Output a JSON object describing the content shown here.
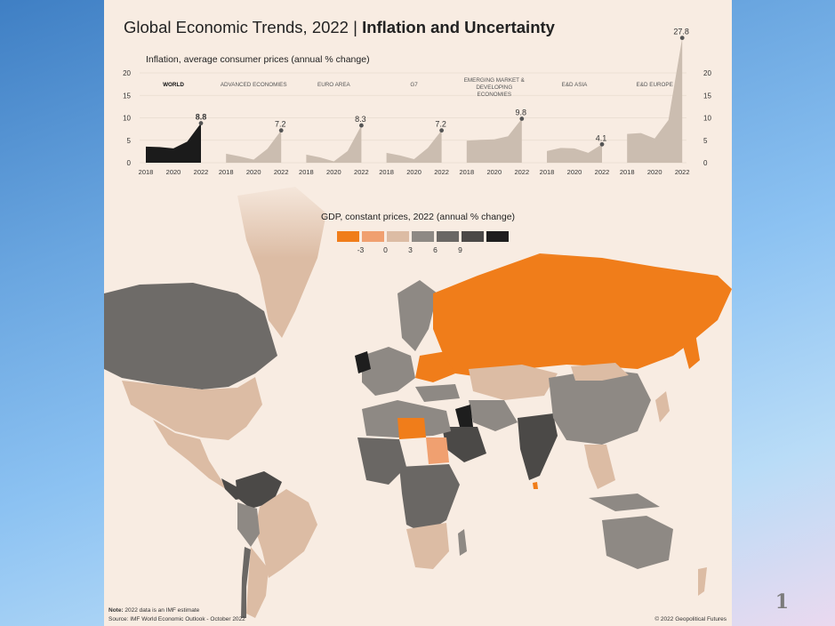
{
  "title": {
    "main": "Global Economic Trends, 2022 | ",
    "bold": "Inflation and Uncertainty"
  },
  "inflation_label": "Inflation, average consumer prices (annual % change)",
  "gdp_legend": {
    "title": "GDP, constant prices, 2022 (annual % change)",
    "colors": [
      "#f07d1a",
      "#f0a070",
      "#dcbca4",
      "#8e8984",
      "#6a6764",
      "#4b4947",
      "#1e1e1e"
    ],
    "ticks": [
      "-3",
      "0",
      "3",
      "6",
      "9"
    ]
  },
  "chart_data": {
    "type": "area",
    "title": "Inflation, average consumer prices (annual % change)",
    "ylim": [
      0,
      20
    ],
    "yticks": [
      "0",
      "5",
      "10",
      "15",
      "20"
    ],
    "x": [
      2018,
      2019,
      2020,
      2021,
      2022
    ],
    "xticks": [
      "2018",
      "2020",
      "2022"
    ],
    "series": [
      {
        "name": "WORLD",
        "values": [
          3.6,
          3.5,
          3.2,
          4.7,
          8.8
        ],
        "label": "8.8",
        "highlight": true
      },
      {
        "name": "ADVANCED ECONOMIES",
        "values": [
          2.0,
          1.4,
          0.7,
          3.1,
          7.2
        ],
        "label": "7.2"
      },
      {
        "name": "EURO AREA",
        "values": [
          1.8,
          1.2,
          0.3,
          2.6,
          8.3
        ],
        "label": "8.3"
      },
      {
        "name": "G7",
        "values": [
          2.2,
          1.6,
          0.8,
          3.3,
          7.2
        ],
        "label": "7.2"
      },
      {
        "name": "EMERGING MARKET & DEVELOPING ECONOMIES",
        "values": [
          4.9,
          5.1,
          5.2,
          5.9,
          9.8
        ],
        "label": "9.8"
      },
      {
        "name": "E&D ASIA",
        "values": [
          2.6,
          3.3,
          3.2,
          2.2,
          4.1
        ],
        "label": "4.1"
      },
      {
        "name": "E&D EUROPE",
        "values": [
          6.4,
          6.6,
          5.4,
          9.5,
          27.8
        ],
        "label": "27.8"
      }
    ]
  },
  "colors": {
    "world_fill": "#1b1b1b",
    "other_fill": "#cbbdb0",
    "dot": "#555555"
  },
  "note": {
    "label": "Note:",
    "text": " 2022 data is an IMF estimate"
  },
  "source": "Source: IMF World Economic Outlook - October 2022",
  "copyright": "© 2022 Geopolitical Futures",
  "slide_number": "1"
}
